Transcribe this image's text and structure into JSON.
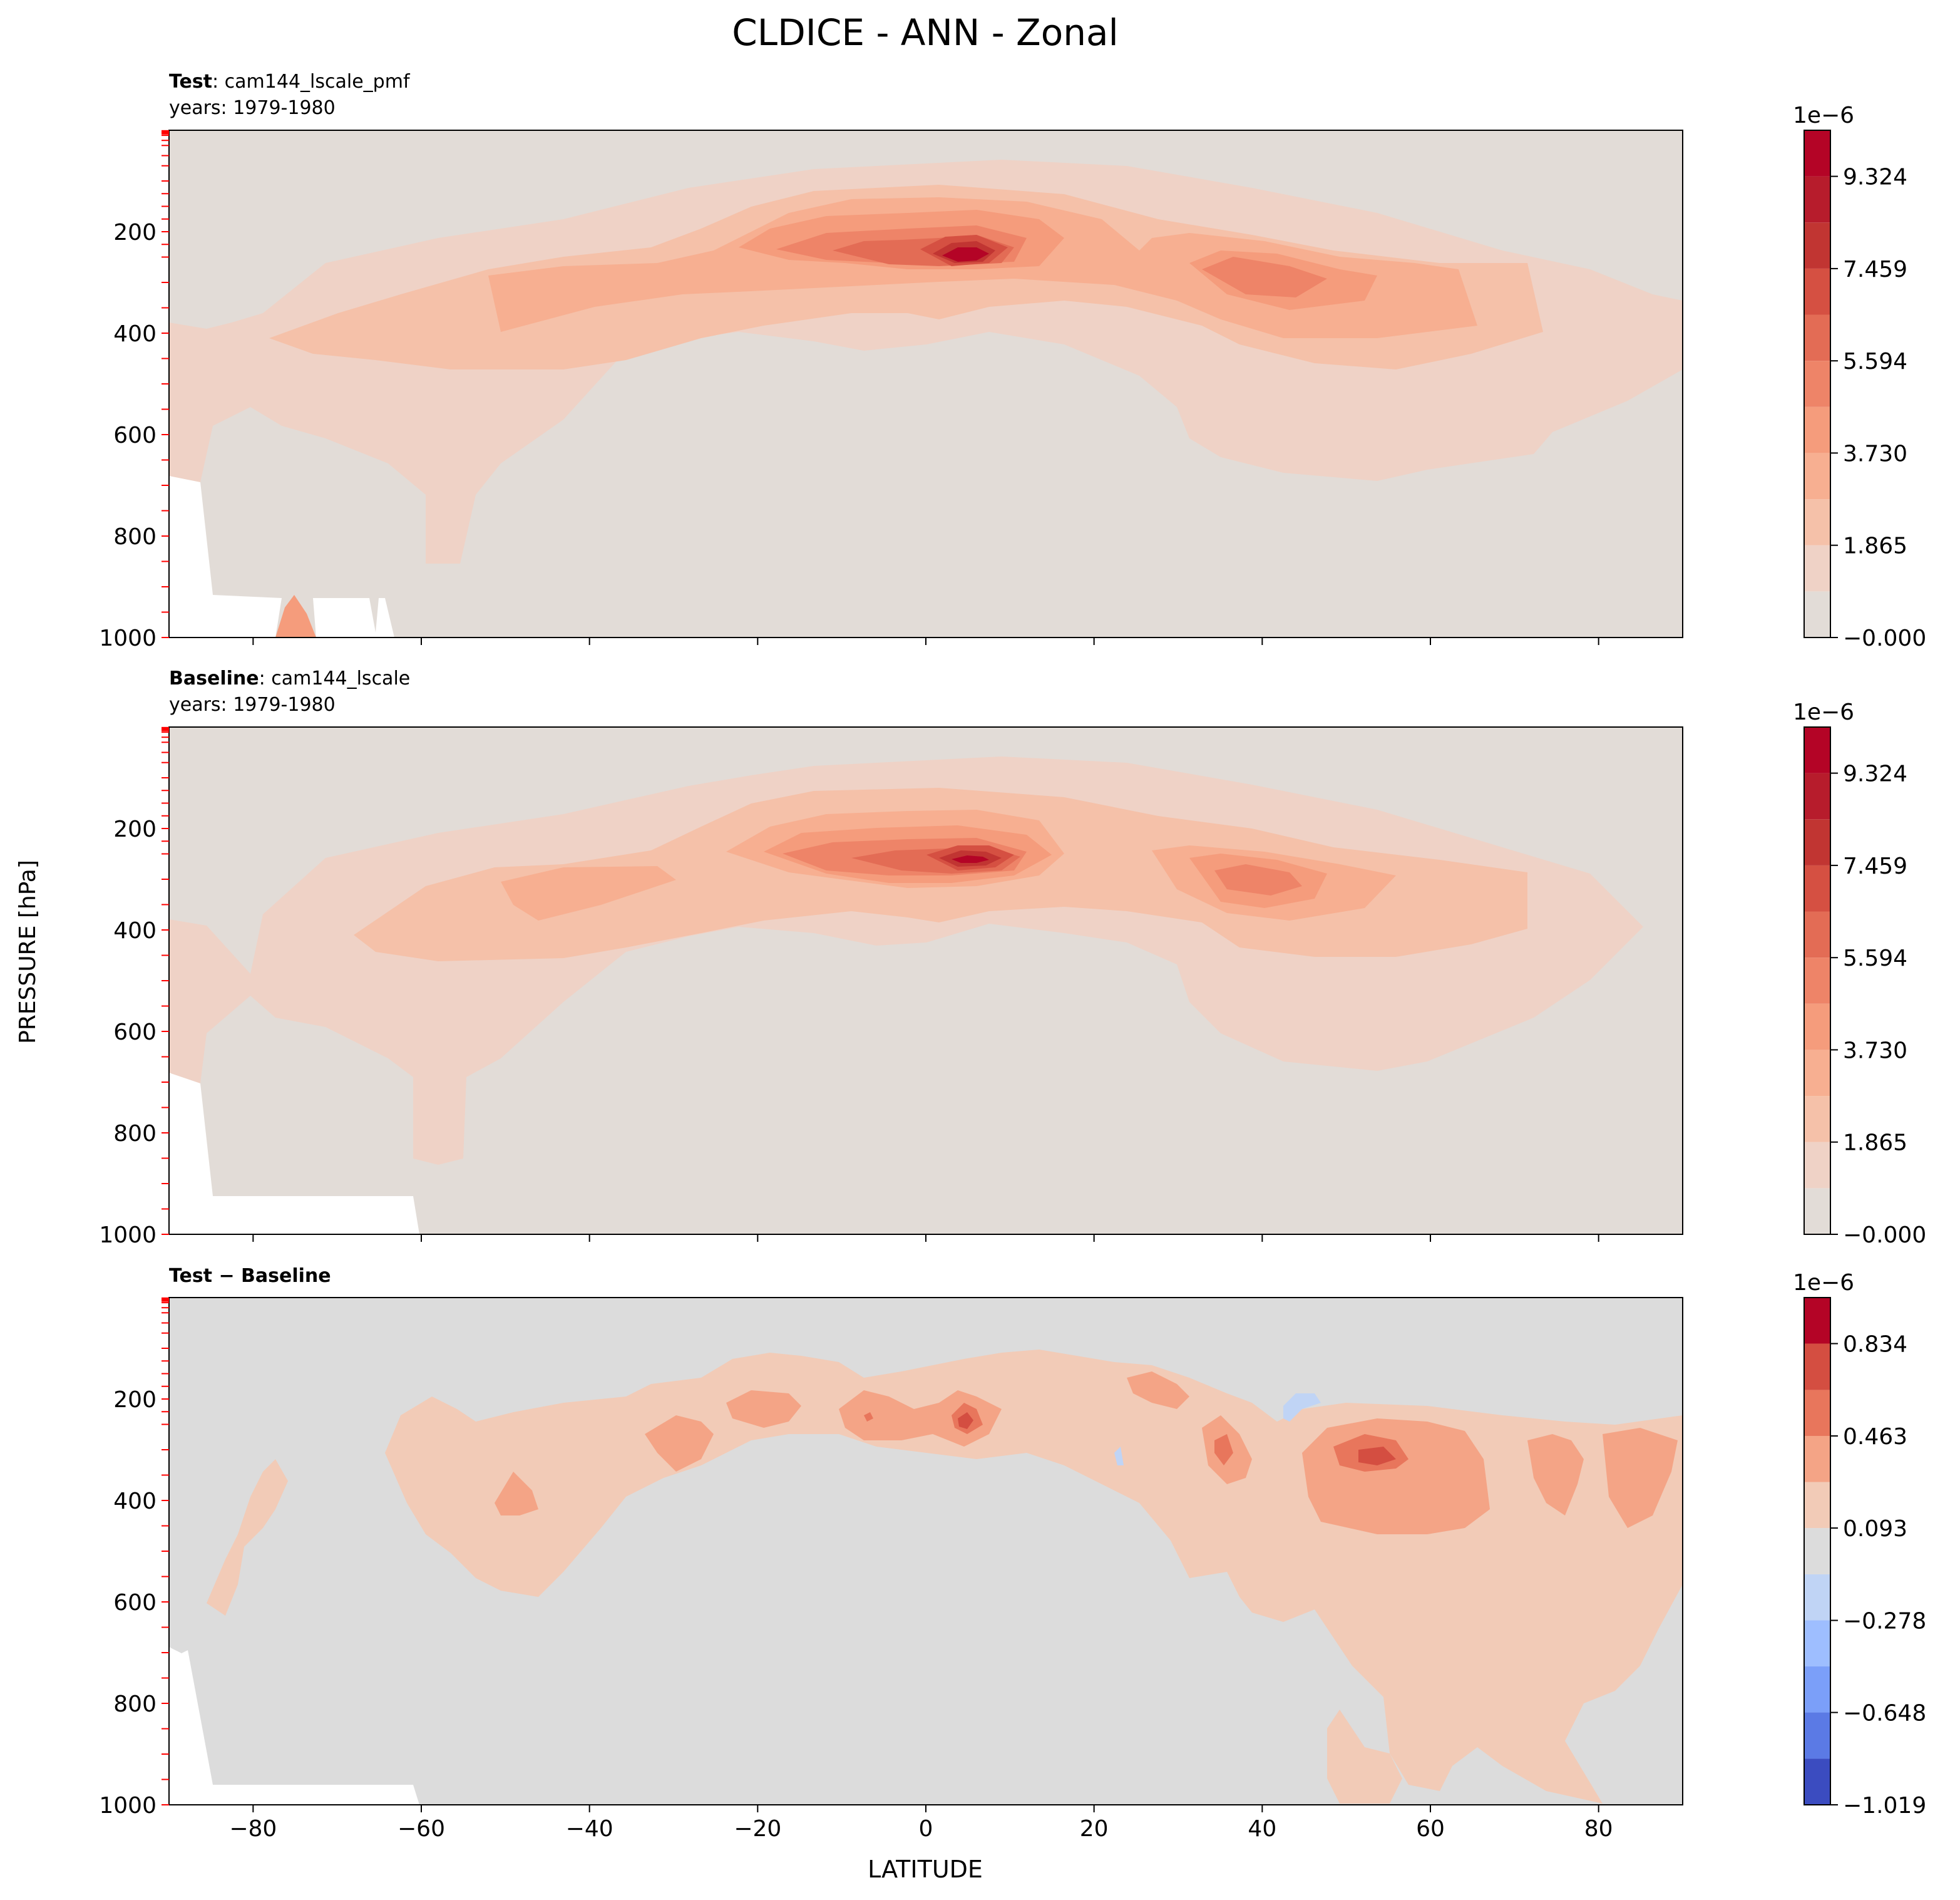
{
  "figure": {
    "title": "CLDICE - ANN - Zonal",
    "ylabel": "PRESSURE [hPa]",
    "xlabel": "LATITUDE"
  },
  "panels": [
    {
      "name_bold": "Test",
      "name_rest": ": cam144_lscale_pmf",
      "years": "years: 1979-1980",
      "colorbar_exponent": "1e−6",
      "colorbar_ticks": [
        "−0.000",
        "1.865",
        "3.730",
        "5.594",
        "7.459",
        "9.324"
      ]
    },
    {
      "name_bold": "Baseline",
      "name_rest": ": cam144_lscale",
      "years": "years: 1979-1980",
      "colorbar_exponent": "1e−6",
      "colorbar_ticks": [
        "−0.000",
        "1.865",
        "3.730",
        "5.594",
        "7.459",
        "9.324"
      ]
    },
    {
      "name_bold": "Test − Baseline",
      "name_rest": "",
      "years": "",
      "colorbar_exponent": "1e−6",
      "colorbar_ticks": [
        "−1.019",
        "−0.648",
        "−0.278",
        "0.093",
        "0.463",
        "0.834"
      ]
    }
  ],
  "chart_data": [
    {
      "type": "contour",
      "panel": "Test",
      "x_range": [
        -90,
        90
      ],
      "y_range": [
        1000,
        0
      ],
      "y_ticks": [
        200,
        400,
        600,
        800,
        1000
      ],
      "x_ticks": [
        -80,
        -60,
        -40,
        -20,
        0,
        20,
        40,
        60,
        80
      ],
      "levels": [
        -0.0,
        0.932,
        1.865,
        2.797,
        3.73,
        4.662,
        5.594,
        6.527,
        7.459,
        8.392,
        9.324,
        10.256
      ],
      "colors": [
        "#e2dcd7",
        "#efd2c6",
        "#f5c1a9",
        "#f7af91",
        "#f59c7c",
        "#ee8468",
        "#e36c55",
        "#d55042",
        "#c13532",
        "#b71c2c",
        "#b40426"
      ],
      "max_point": {
        "lat": 8,
        "pressure": 250
      },
      "secondary_maxima": [
        {
          "lat": -35,
          "pressure": 300
        },
        {
          "lat": 40,
          "pressure": 310
        }
      ]
    },
    {
      "type": "contour",
      "panel": "Baseline",
      "x_range": [
        -90,
        90
      ],
      "y_range": [
        1000,
        0
      ],
      "y_ticks": [
        200,
        400,
        600,
        800,
        1000
      ],
      "x_ticks": [
        -80,
        -60,
        -40,
        -20,
        0,
        20,
        40,
        60,
        80
      ],
      "levels": [
        -0.0,
        0.932,
        1.865,
        2.797,
        3.73,
        4.662,
        5.594,
        6.527,
        7.459,
        8.392,
        9.324,
        10.256
      ],
      "colors": [
        "#e2dcd7",
        "#efd2c6",
        "#f5c1a9",
        "#f7af91",
        "#f59c7c",
        "#ee8468",
        "#e36c55",
        "#d55042",
        "#c13532",
        "#b71c2c",
        "#b40426"
      ],
      "max_point": {
        "lat": 8,
        "pressure": 250
      }
    },
    {
      "type": "contour",
      "panel": "Test − Baseline",
      "x_range": [
        -90,
        90
      ],
      "y_range": [
        1000,
        0
      ],
      "y_ticks": [
        200,
        400,
        600,
        800,
        1000
      ],
      "x_ticks": [
        -80,
        -60,
        -40,
        -20,
        0,
        20,
        40,
        60,
        80
      ],
      "levels": [
        -1.019,
        -0.834,
        -0.648,
        -0.463,
        -0.278,
        -0.093,
        0.093,
        0.278,
        0.463,
        0.648,
        0.834,
        1.019
      ],
      "colors": [
        "#3b4cc0",
        "#5b7ae5",
        "#7b9ff9",
        "#9ebeff",
        "#c0d4f5",
        "#dcdcdc",
        "#f2cbb7",
        "#f4a486",
        "#e8765c",
        "#d44e41",
        "#b40426"
      ],
      "max_point": {
        "lat": 5,
        "pressure": 250
      },
      "min_point": {
        "lat": 45,
        "pressure": 200
      }
    }
  ]
}
